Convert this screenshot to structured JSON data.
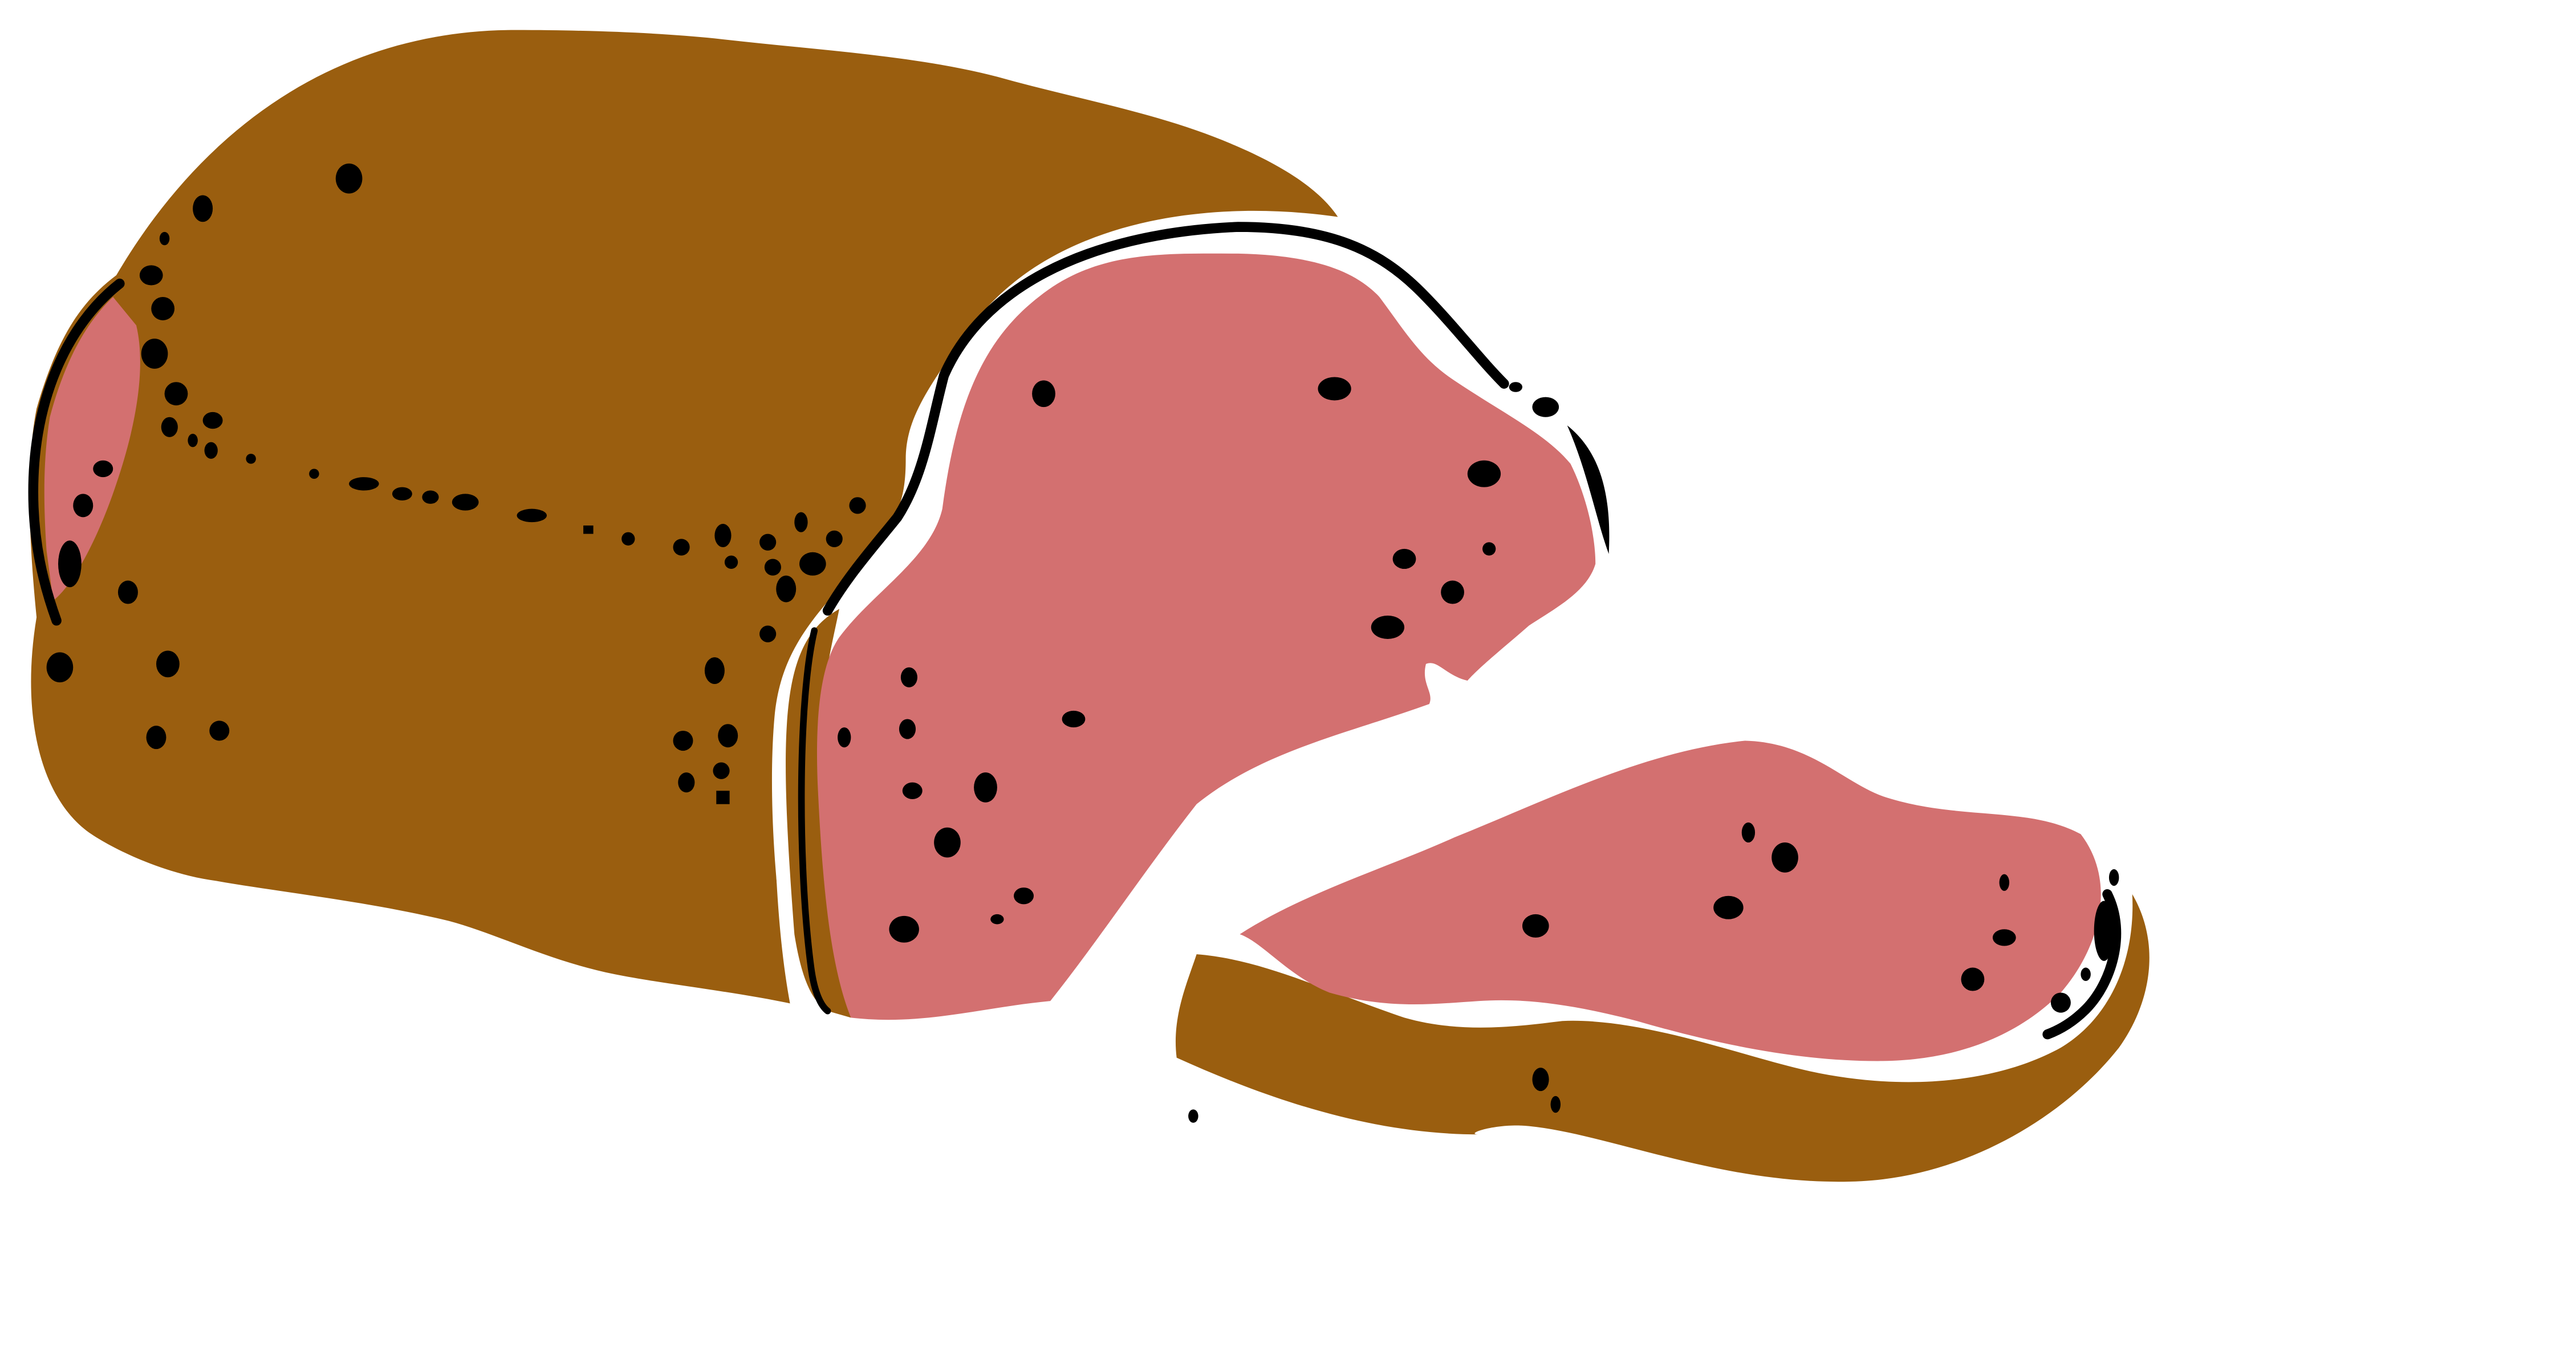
{
  "illustration": {
    "subject": "bread-loaf-with-slices",
    "colors": {
      "background": "#ffffff",
      "crust": "#9a5e0f",
      "crumb": "#d37070",
      "ink": "#000000",
      "outline": "#ffffff"
    },
    "parts": [
      "loaf-crust",
      "loaf-end-crumb",
      "front-slice",
      "loose-slice",
      "seeds"
    ]
  }
}
